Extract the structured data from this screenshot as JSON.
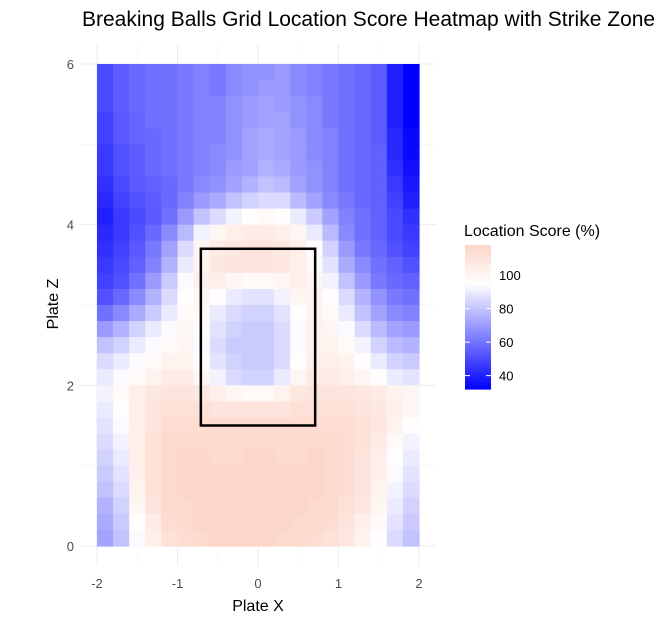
{
  "chart_data": {
    "type": "heatmap",
    "title": "Breaking Balls Grid Location Score Heatmap with Strike Zone",
    "xlabel": "Plate X",
    "ylabel": "Plate Z",
    "xlim": [
      -2,
      2
    ],
    "ylim": [
      0,
      6
    ],
    "x_ticks": [
      -2,
      -1,
      0,
      1,
      2
    ],
    "y_ticks": [
      0,
      2,
      4,
      6
    ],
    "grid": true,
    "legend": {
      "title": "Location Score (%)",
      "placement": "right",
      "ticks": [
        40,
        60,
        80,
        100
      ],
      "range": [
        32,
        118
      ],
      "colors": {
        "low": "#0000ff",
        "mid": "#ffffff",
        "high": "#fcd6c9"
      },
      "midpoint": 95
    },
    "strike_zone": {
      "x_min": -0.71,
      "x_max": 0.71,
      "z_min": 1.5,
      "z_max": 3.7
    },
    "grid_x_cells": 20,
    "grid_z_cells": 30,
    "x_centers": [
      -1.9,
      -1.7,
      -1.5,
      -1.3,
      -1.1,
      -0.9,
      -0.7,
      -0.5,
      -0.3,
      -0.1,
      0.1,
      0.3,
      0.5,
      0.7,
      0.9,
      1.1,
      1.3,
      1.5,
      1.7,
      1.9
    ],
    "z_rows_from_top": [
      {
        "z": 5.9,
        "values": [
          50,
          55,
          58,
          60,
          60,
          62,
          64,
          62,
          66,
          68,
          68,
          70,
          66,
          64,
          62,
          60,
          58,
          55,
          40,
          32
        ]
      },
      {
        "z": 5.7,
        "values": [
          50,
          55,
          58,
          60,
          60,
          62,
          64,
          62,
          66,
          68,
          70,
          70,
          66,
          64,
          62,
          60,
          58,
          55,
          40,
          32
        ]
      },
      {
        "z": 5.5,
        "values": [
          50,
          55,
          58,
          60,
          60,
          62,
          64,
          64,
          68,
          70,
          72,
          70,
          68,
          66,
          62,
          60,
          58,
          55,
          40,
          32
        ]
      },
      {
        "z": 5.3,
        "values": [
          48,
          54,
          57,
          60,
          60,
          62,
          64,
          64,
          68,
          70,
          72,
          72,
          68,
          66,
          62,
          60,
          58,
          55,
          40,
          32
        ]
      },
      {
        "z": 5.1,
        "values": [
          48,
          54,
          57,
          58,
          60,
          62,
          64,
          64,
          68,
          72,
          74,
          72,
          70,
          66,
          64,
          60,
          58,
          55,
          42,
          34
        ]
      },
      {
        "z": 4.9,
        "values": [
          46,
          52,
          55,
          58,
          60,
          62,
          64,
          66,
          68,
          72,
          74,
          72,
          70,
          66,
          64,
          60,
          58,
          56,
          42,
          34
        ]
      },
      {
        "z": 4.7,
        "values": [
          46,
          52,
          55,
          58,
          60,
          62,
          64,
          66,
          70,
          72,
          76,
          74,
          70,
          68,
          64,
          60,
          58,
          56,
          44,
          36
        ]
      },
      {
        "z": 4.5,
        "values": [
          44,
          50,
          54,
          56,
          58,
          62,
          66,
          68,
          72,
          76,
          80,
          78,
          72,
          68,
          64,
          60,
          58,
          56,
          46,
          38
        ]
      },
      {
        "z": 4.3,
        "values": [
          42,
          48,
          52,
          55,
          58,
          64,
          70,
          74,
          80,
          84,
          86,
          86,
          78,
          72,
          66,
          62,
          58,
          56,
          48,
          40
        ]
      },
      {
        "z": 4.1,
        "values": [
          40,
          46,
          50,
          54,
          60,
          70,
          80,
          86,
          92,
          96,
          98,
          96,
          90,
          82,
          72,
          64,
          60,
          56,
          50,
          44
        ]
      },
      {
        "z": 3.9,
        "values": [
          42,
          46,
          52,
          58,
          66,
          78,
          92,
          100,
          104,
          106,
          106,
          104,
          100,
          90,
          78,
          66,
          60,
          56,
          50,
          46
        ]
      },
      {
        "z": 3.7,
        "values": [
          44,
          48,
          54,
          62,
          72,
          86,
          100,
          106,
          108,
          110,
          110,
          108,
          104,
          96,
          84,
          70,
          62,
          58,
          52,
          48
        ]
      },
      {
        "z": 3.5,
        "values": [
          46,
          50,
          56,
          64,
          76,
          90,
          102,
          108,
          110,
          110,
          110,
          108,
          104,
          98,
          88,
          74,
          66,
          60,
          56,
          52
        ]
      },
      {
        "z": 3.3,
        "values": [
          48,
          52,
          60,
          70,
          82,
          94,
          104,
          104,
          100,
          98,
          98,
          100,
          104,
          100,
          92,
          80,
          70,
          62,
          58,
          56
        ]
      },
      {
        "z": 3.1,
        "values": [
          52,
          58,
          66,
          76,
          86,
          96,
          100,
          96,
          90,
          88,
          88,
          92,
          100,
          102,
          96,
          86,
          76,
          68,
          62,
          60
        ]
      },
      {
        "z": 2.9,
        "values": [
          60,
          66,
          74,
          82,
          90,
          98,
          98,
          90,
          86,
          84,
          84,
          88,
          96,
          102,
          98,
          90,
          80,
          72,
          66,
          64
        ]
      },
      {
        "z": 2.7,
        "values": [
          70,
          76,
          84,
          90,
          94,
          100,
          96,
          88,
          84,
          82,
          82,
          86,
          94,
          102,
          100,
          94,
          86,
          78,
          72,
          70
        ]
      },
      {
        "z": 2.5,
        "values": [
          80,
          84,
          90,
          94,
          98,
          100,
          94,
          86,
          82,
          82,
          82,
          86,
          94,
          102,
          102,
          98,
          92,
          84,
          78,
          76
        ]
      },
      {
        "z": 2.3,
        "values": [
          86,
          90,
          94,
          98,
          102,
          102,
          96,
          88,
          84,
          82,
          82,
          86,
          96,
          104,
          104,
          102,
          96,
          90,
          84,
          82
        ]
      },
      {
        "z": 2.1,
        "values": [
          90,
          94,
          98,
          102,
          106,
          106,
          100,
          92,
          86,
          84,
          84,
          90,
          100,
          106,
          106,
          104,
          100,
          96,
          90,
          88
        ]
      },
      {
        "z": 1.9,
        "values": [
          92,
          98,
          104,
          108,
          110,
          110,
          108,
          104,
          100,
          98,
          98,
          102,
          108,
          110,
          110,
          110,
          108,
          106,
          102,
          100
        ]
      },
      {
        "z": 1.7,
        "values": [
          90,
          96,
          104,
          110,
          112,
          112,
          112,
          110,
          110,
          110,
          110,
          110,
          112,
          112,
          112,
          112,
          110,
          108,
          104,
          100
        ]
      },
      {
        "z": 1.5,
        "values": [
          88,
          94,
          104,
          110,
          114,
          114,
          114,
          114,
          114,
          114,
          114,
          114,
          114,
          114,
          114,
          114,
          112,
          108,
          102,
          96
        ]
      },
      {
        "z": 1.3,
        "values": [
          86,
          92,
          104,
          112,
          116,
          116,
          116,
          116,
          116,
          116,
          116,
          116,
          116,
          116,
          116,
          114,
          112,
          106,
          98,
          92
        ]
      },
      {
        "z": 1.1,
        "values": [
          84,
          90,
          104,
          112,
          116,
          118,
          118,
          116,
          116,
          118,
          118,
          116,
          116,
          118,
          116,
          114,
          110,
          104,
          96,
          90
        ]
      },
      {
        "z": 0.9,
        "values": [
          82,
          88,
          104,
          112,
          116,
          118,
          118,
          118,
          118,
          118,
          118,
          118,
          118,
          118,
          116,
          114,
          110,
          104,
          94,
          88
        ]
      },
      {
        "z": 0.7,
        "values": [
          80,
          86,
          102,
          112,
          116,
          118,
          118,
          118,
          118,
          118,
          118,
          118,
          118,
          118,
          116,
          114,
          110,
          102,
          92,
          86
        ]
      },
      {
        "z": 0.5,
        "values": [
          76,
          84,
          100,
          110,
          116,
          116,
          118,
          118,
          118,
          118,
          118,
          118,
          118,
          116,
          116,
          112,
          108,
          100,
          90,
          84
        ]
      },
      {
        "z": 0.3,
        "values": [
          74,
          82,
          96,
          106,
          114,
          116,
          118,
          118,
          118,
          118,
          118,
          118,
          116,
          116,
          114,
          110,
          104,
          98,
          88,
          82
        ]
      },
      {
        "z": 0.1,
        "values": [
          72,
          80,
          94,
          104,
          112,
          114,
          116,
          118,
          118,
          118,
          118,
          116,
          116,
          114,
          112,
          108,
          102,
          96,
          86,
          80
        ]
      }
    ]
  }
}
